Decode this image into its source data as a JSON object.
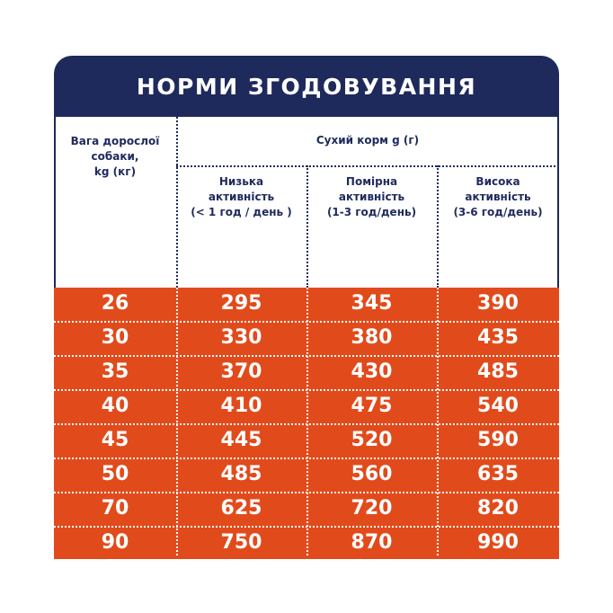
{
  "header": {
    "title": "НОРМИ ЗГОДОВУВАННЯ"
  },
  "table": {
    "weight_header": [
      "Вага дорослої",
      "собаки,",
      "kg (кг)"
    ],
    "group_header": "Сухий корм g (г)",
    "columns": [
      [
        "Низька",
        "активність",
        "(< 1 год / день )"
      ],
      [
        "Помірна",
        "активність",
        "(1-3 год/день)"
      ],
      [
        "Висока",
        "активність",
        "(3-6 год/день)"
      ]
    ],
    "rows": [
      [
        "26",
        "295",
        "345",
        "390"
      ],
      [
        "30",
        "330",
        "380",
        "435"
      ],
      [
        "35",
        "370",
        "430",
        "485"
      ],
      [
        "40",
        "410",
        "475",
        "540"
      ],
      [
        "45",
        "445",
        "520",
        "590"
      ],
      [
        "50",
        "485",
        "560",
        "635"
      ],
      [
        "70",
        "625",
        "720",
        "820"
      ],
      [
        "90",
        "750",
        "870",
        "990"
      ]
    ]
  }
}
